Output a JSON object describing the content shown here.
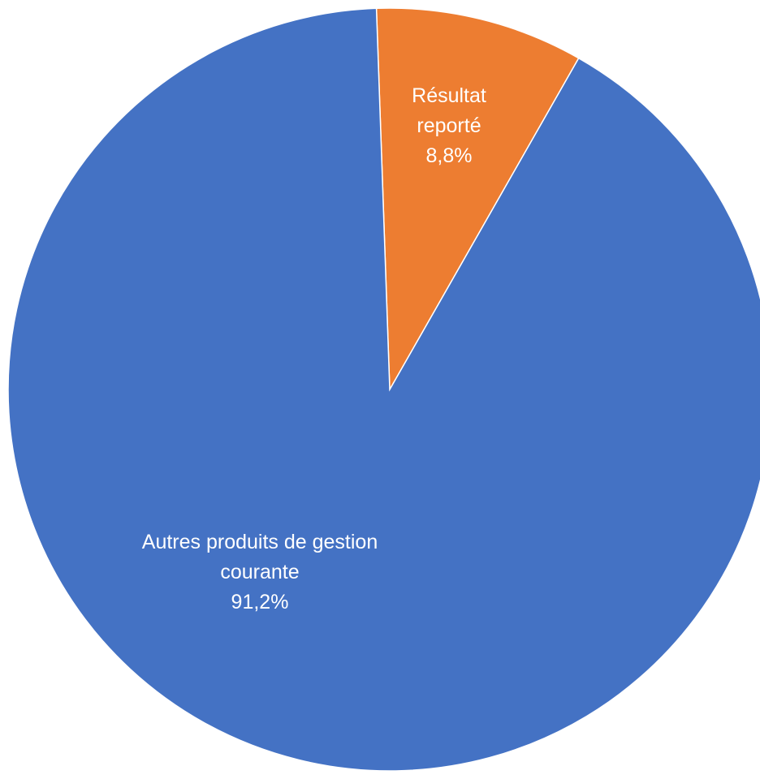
{
  "chart_data": {
    "type": "pie",
    "categories": [
      "Résultat reporté",
      "Autres produits de gestion courante"
    ],
    "values": [
      8.8,
      91.2
    ],
    "value_labels": [
      "8,8%",
      "91,2%"
    ],
    "colors": [
      "#ed7d31",
      "#4472c4"
    ]
  }
}
